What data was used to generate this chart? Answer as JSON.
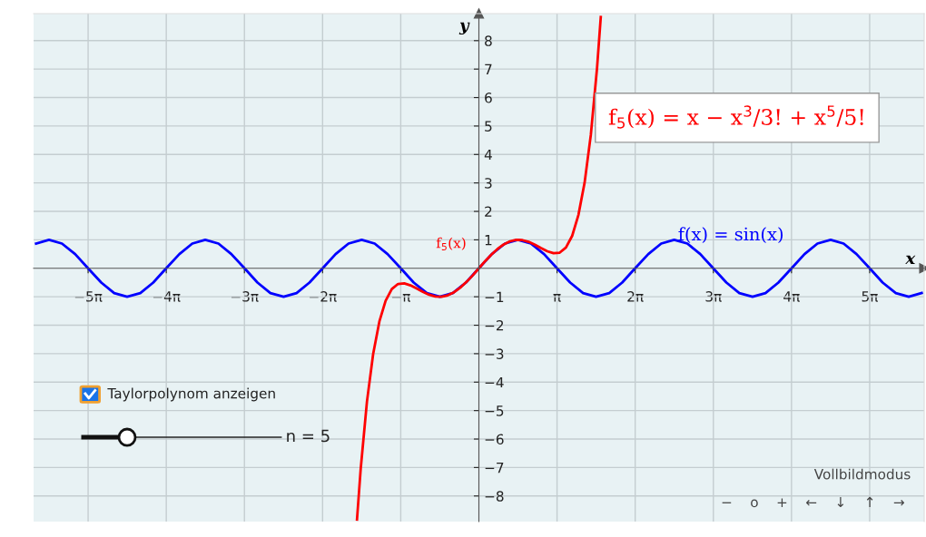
{
  "chart_data": {
    "type": "line",
    "xlabel": "x",
    "ylabel": "y",
    "xlim": [
      -17.9,
      17.9
    ],
    "ylim": [
      -8.9,
      8.95
    ],
    "xticks": [
      {
        "value": -15.708,
        "label": "−5π"
      },
      {
        "value": -12.566,
        "label": "−4π"
      },
      {
        "value": -9.425,
        "label": "−3π"
      },
      {
        "value": -6.283,
        "label": "−2π"
      },
      {
        "value": -3.1416,
        "label": "−π"
      },
      {
        "value": 3.1416,
        "label": "π"
      },
      {
        "value": 6.283,
        "label": "2π"
      },
      {
        "value": 9.425,
        "label": "3π"
      },
      {
        "value": 12.566,
        "label": "4π"
      },
      {
        "value": 15.708,
        "label": "5π"
      }
    ],
    "yticks": [
      {
        "value": -8,
        "label": "−8"
      },
      {
        "value": -7,
        "label": "−7"
      },
      {
        "value": -6,
        "label": "−6"
      },
      {
        "value": -5,
        "label": "−5"
      },
      {
        "value": -4,
        "label": "−4"
      },
      {
        "value": -3,
        "label": "−3"
      },
      {
        "value": -2,
        "label": "−2"
      },
      {
        "value": -1,
        "label": "−1"
      },
      1,
      2,
      3,
      4,
      5,
      6,
      7,
      8
    ],
    "grid": true,
    "marker": "none",
    "line_style": "solid",
    "series": [
      {
        "name": "f(x) = sin(x)",
        "color": "#0000ff",
        "x": [
          -17.8,
          -17.28,
          -16.76,
          -16.23,
          -15.71,
          -15.18,
          -14.66,
          -14.14,
          -13.61,
          -13.09,
          -12.57,
          -12.04,
          -11.52,
          -11.0,
          -10.47,
          -9.95,
          -9.42,
          -8.9,
          -8.38,
          -7.85,
          -7.33,
          -6.81,
          -6.28,
          -5.76,
          -5.24,
          -4.71,
          -4.19,
          -3.67,
          -3.14,
          -2.62,
          -2.09,
          -1.57,
          -1.05,
          -0.52,
          0,
          0.52,
          1.05,
          1.57,
          2.09,
          2.62,
          3.14,
          3.67,
          4.19,
          4.71,
          5.24,
          5.76,
          6.28,
          6.81,
          7.33,
          7.85,
          8.38,
          8.9,
          9.42,
          9.95,
          10.47,
          11.0,
          11.52,
          12.04,
          12.57,
          13.09,
          13.61,
          14.14,
          14.66,
          15.18,
          15.71,
          16.23,
          16.76,
          17.28,
          17.8
        ],
        "values": [
          0.87,
          1,
          0.87,
          0.5,
          0,
          -0.5,
          -0.87,
          -1,
          -0.87,
          -0.5,
          0,
          0.5,
          0.87,
          1,
          0.87,
          0.5,
          0,
          -0.5,
          -0.87,
          -1,
          -0.87,
          -0.5,
          0,
          0.5,
          0.87,
          1,
          0.87,
          0.5,
          0,
          -0.5,
          -0.87,
          -1,
          -0.87,
          -0.5,
          0,
          0.5,
          0.87,
          1,
          0.87,
          0.5,
          0,
          -0.5,
          -0.87,
          -1,
          -0.87,
          -0.5,
          0,
          0.5,
          0.87,
          1,
          0.87,
          0.5,
          0,
          -0.5,
          -0.87,
          -1,
          -0.87,
          -0.5,
          0,
          0.5,
          0.87,
          1,
          0.87,
          0.5,
          0,
          -0.5,
          -0.87,
          -1,
          -0.87
        ]
      },
      {
        "name": "f$_{5}$(x)",
        "color": "#ff0000",
        "x": [
          -4.9,
          -4.75,
          -4.5,
          -4.25,
          -4,
          -3.75,
          -3.5,
          -3.25,
          -3,
          -2.75,
          -2.5,
          -2.25,
          -2,
          -1.75,
          -1.5,
          -1.25,
          -1,
          -0.75,
          -0.5,
          -0.25,
          0,
          0.25,
          0.5,
          0.75,
          1,
          1.25,
          1.5,
          1.75,
          2,
          2.25,
          2.5,
          2.75,
          3,
          3.25,
          3.5,
          3.75,
          4,
          4.25,
          4.5,
          4.75,
          4.9
        ],
        "values": [
          -8.83,
          -7.04,
          -4.69,
          -3.01,
          -1.87,
          -1.14,
          -0.73,
          -0.55,
          -0.53,
          -0.6,
          -0.71,
          -0.83,
          -0.93,
          -0.99,
          -1.0,
          -0.95,
          -0.84,
          -0.68,
          -0.48,
          -0.25,
          0,
          0.25,
          0.48,
          0.68,
          0.84,
          0.95,
          1.0,
          0.99,
          0.93,
          0.83,
          0.71,
          0.6,
          0.53,
          0.55,
          0.73,
          1.14,
          1.87,
          3.01,
          4.69,
          7.04,
          8.83
        ]
      }
    ],
    "annotations": [
      "f$_{5}$(x) = x − x$^{3}$/3! + x$^{5}$/5!",
      "Taylorpolynom anzeigen",
      "n = 5",
      "Vollbildmodus",
      "−    o    +    ←    ↓    ↑    →"
    ]
  }
}
